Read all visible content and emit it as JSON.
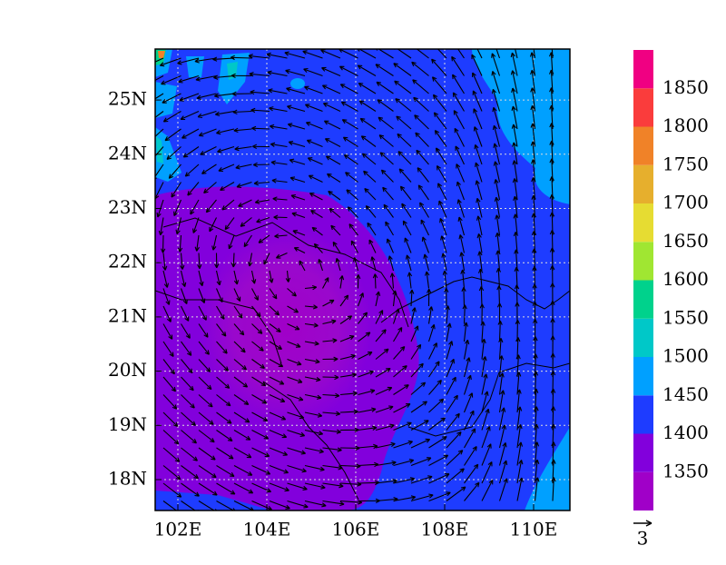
{
  "map": {
    "x_ticks": [
      "102E",
      "104E",
      "106E",
      "108E",
      "110E"
    ],
    "y_ticks": [
      "18N",
      "19N",
      "20N",
      "21N",
      "22N",
      "23N",
      "24N",
      "25N"
    ],
    "colorbar": {
      "labels": [
        "1350",
        "1400",
        "1450",
        "1500",
        "1550",
        "1600",
        "1650",
        "1700",
        "1750",
        "1800",
        "1850"
      ],
      "colors": [
        "#a000c8",
        "#8200dc",
        "#1e3cff",
        "#00a0ff",
        "#00c8c8",
        "#00d28c",
        "#a0e632",
        "#e6dc32",
        "#e6af2d",
        "#f08228",
        "#fa3c3c",
        "#f00082"
      ]
    },
    "reference_vector": "3"
  }
}
